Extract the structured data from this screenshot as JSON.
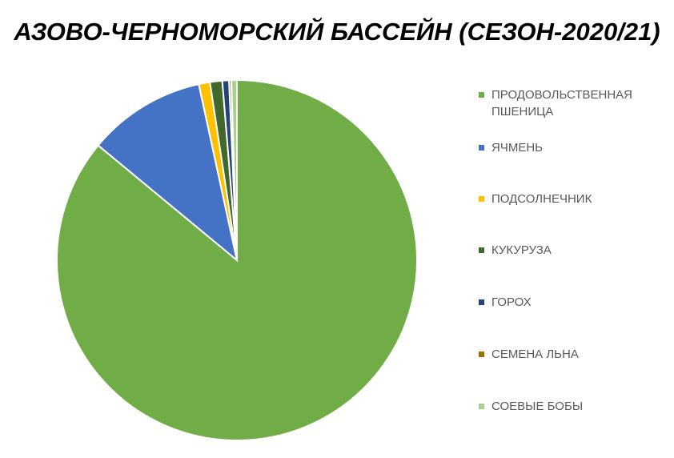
{
  "chart_data": {
    "type": "pie",
    "title": "АЗОВО-ЧЕРНОМОРСКИЙ БАССЕЙН (СЕЗОН-2020/21)",
    "categories": [
      "ПРОДОВОЛЬСТВЕННАЯ ПШЕНИЦА",
      "ЯЧМЕНЬ",
      "ПОДСОЛНЕЧНИК",
      "КУКУРУЗА",
      "ГОРОХ",
      "СЕМЕНА ЛЬНА",
      "СОЕВЫЕ БОБЫ"
    ],
    "values": [
      86.0,
      10.6,
      1.0,
      1.1,
      0.6,
      0.2,
      0.5
    ],
    "colors": [
      "#70ad47",
      "#4472c4",
      "#ffc000",
      "#43682b",
      "#264478",
      "#997300",
      "#a9d18e"
    ],
    "legend": "right"
  }
}
